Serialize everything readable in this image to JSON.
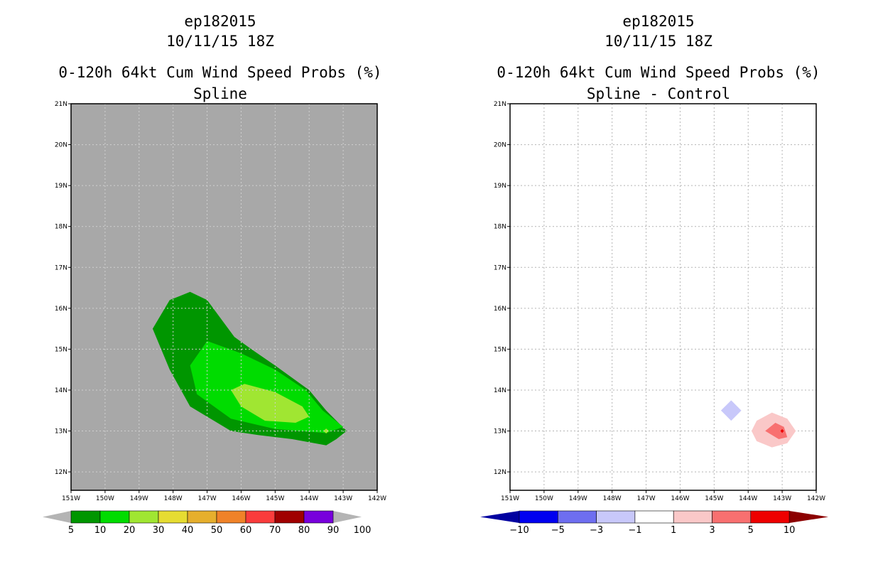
{
  "chart_data": [
    {
      "type": "contour",
      "title_lines": [
        "ep182015",
        "10/11/15 18Z",
        "0-120h 64kt Cum Wind Speed Probs (%)",
        "Spline"
      ],
      "x_ticks": [
        "151W",
        "150W",
        "149W",
        "148W",
        "147W",
        "146W",
        "145W",
        "144W",
        "143W",
        "142W"
      ],
      "y_ticks": [
        "12N",
        "13N",
        "14N",
        "15N",
        "16N",
        "17N",
        "18N",
        "19N",
        "20N",
        "21N"
      ],
      "xlim": [
        -151,
        -142
      ],
      "ylim": [
        11.55,
        21
      ],
      "background_color": "#a8a8a8",
      "contours": [
        {
          "level": "5-10",
          "color": "#009600",
          "polygon": [
            [
              -148.6,
              15.5
            ],
            [
              -148.1,
              16.2
            ],
            [
              -147.5,
              16.4
            ],
            [
              -147.0,
              16.2
            ],
            [
              -146.2,
              15.3
            ],
            [
              -145.7,
              15.0
            ],
            [
              -145.0,
              14.6
            ],
            [
              -144.0,
              14.0
            ],
            [
              -143.5,
              13.5
            ],
            [
              -142.9,
              13.0
            ],
            [
              -143.2,
              12.8
            ],
            [
              -143.5,
              12.65
            ],
            [
              -144.5,
              12.8
            ],
            [
              -145.5,
              12.9
            ],
            [
              -146.3,
              13.0
            ],
            [
              -147.5,
              13.6
            ],
            [
              -148.1,
              14.5
            ]
          ]
        },
        {
          "level": "10-20",
          "color": "#00dc00",
          "polygon": [
            [
              -147.5,
              14.6
            ],
            [
              -147.0,
              15.2
            ],
            [
              -146.0,
              14.9
            ],
            [
              -145.0,
              14.5
            ],
            [
              -144.1,
              14.0
            ],
            [
              -143.6,
              13.5
            ],
            [
              -143.0,
              13.1
            ],
            [
              -143.5,
              12.95
            ],
            [
              -145.0,
              13.05
            ],
            [
              -146.3,
              13.3
            ],
            [
              -147.3,
              13.9
            ]
          ]
        },
        {
          "level": "20-30",
          "color": "#a0e632",
          "polygon": [
            [
              -146.3,
              14.0
            ],
            [
              -145.9,
              14.15
            ],
            [
              -145.0,
              13.95
            ],
            [
              -144.2,
              13.6
            ],
            [
              -144.0,
              13.35
            ],
            [
              -144.4,
              13.2
            ],
            [
              -145.3,
              13.25
            ],
            [
              -146.0,
              13.6
            ]
          ]
        },
        {
          "level": "20-30",
          "color": "#a0e632",
          "polygon": [
            [
              -143.5,
              13.06
            ],
            [
              -143.42,
              13.0
            ],
            [
              -143.5,
              12.94
            ],
            [
              -143.58,
              13.0
            ]
          ]
        }
      ],
      "colorbar": {
        "levels": [
          "5",
          "10",
          "20",
          "30",
          "40",
          "50",
          "60",
          "70",
          "80",
          "90",
          "100"
        ],
        "colors": [
          "#009600",
          "#00dc00",
          "#a0e632",
          "#e6dc32",
          "#e6af2d",
          "#f08228",
          "#fa3c3c",
          "#a00000",
          "#7800dc"
        ],
        "low_end_color": "#b4b4b4",
        "high_end_color": "#b4b4b4"
      }
    },
    {
      "type": "contour",
      "title_lines": [
        "ep182015",
        "10/11/15 18Z",
        "0-120h 64kt Cum Wind Speed Probs (%)",
        "Spline - Control"
      ],
      "x_ticks": [
        "151W",
        "150W",
        "149W",
        "148W",
        "147W",
        "146W",
        "145W",
        "144W",
        "143W",
        "142W"
      ],
      "y_ticks": [
        "12N",
        "13N",
        "14N",
        "15N",
        "16N",
        "17N",
        "18N",
        "19N",
        "20N",
        "21N"
      ],
      "xlim": [
        -151,
        -142
      ],
      "ylim": [
        11.55,
        21
      ],
      "background_color": "#ffffff",
      "grid": true,
      "contours": [
        {
          "level": "-3--1",
          "color": "#c8c8fa",
          "polygon": [
            [
              -144.5,
              13.75
            ],
            [
              -144.2,
              13.5
            ],
            [
              -144.5,
              13.25
            ],
            [
              -144.8,
              13.5
            ]
          ]
        },
        {
          "level": "1-3",
          "color": "#fac8c8",
          "polygon": [
            [
              -143.3,
              13.45
            ],
            [
              -142.85,
              13.3
            ],
            [
              -142.6,
              13.0
            ],
            [
              -142.85,
              12.7
            ],
            [
              -143.3,
              12.6
            ],
            [
              -143.75,
              12.75
            ],
            [
              -143.9,
              13.0
            ],
            [
              -143.75,
              13.25
            ]
          ]
        },
        {
          "level": "3-5",
          "color": "#f87070",
          "polygon": [
            [
              -143.2,
              13.2
            ],
            [
              -142.95,
              13.1
            ],
            [
              -142.85,
              12.85
            ],
            [
              -143.1,
              12.8
            ],
            [
              -143.5,
              13.0
            ]
          ]
        },
        {
          "level": "5-10",
          "color": "#ee0000",
          "polygon": [
            [
              -143.0,
              13.05
            ],
            [
              -142.95,
              13.0
            ],
            [
              -143.0,
              12.95
            ],
            [
              -143.05,
              13.0
            ]
          ]
        }
      ],
      "colorbar": {
        "levels": [
          "-10",
          "-5",
          "-3",
          "-1",
          "1",
          "3",
          "5",
          "10"
        ],
        "colors": [
          "#0000f0",
          "#6e6ef0",
          "#c8c8fa",
          "#ffffff",
          "#fac8c8",
          "#f87070",
          "#ee0000"
        ],
        "low_end_color": "#0000a0",
        "high_end_color": "#8c0000"
      }
    }
  ]
}
